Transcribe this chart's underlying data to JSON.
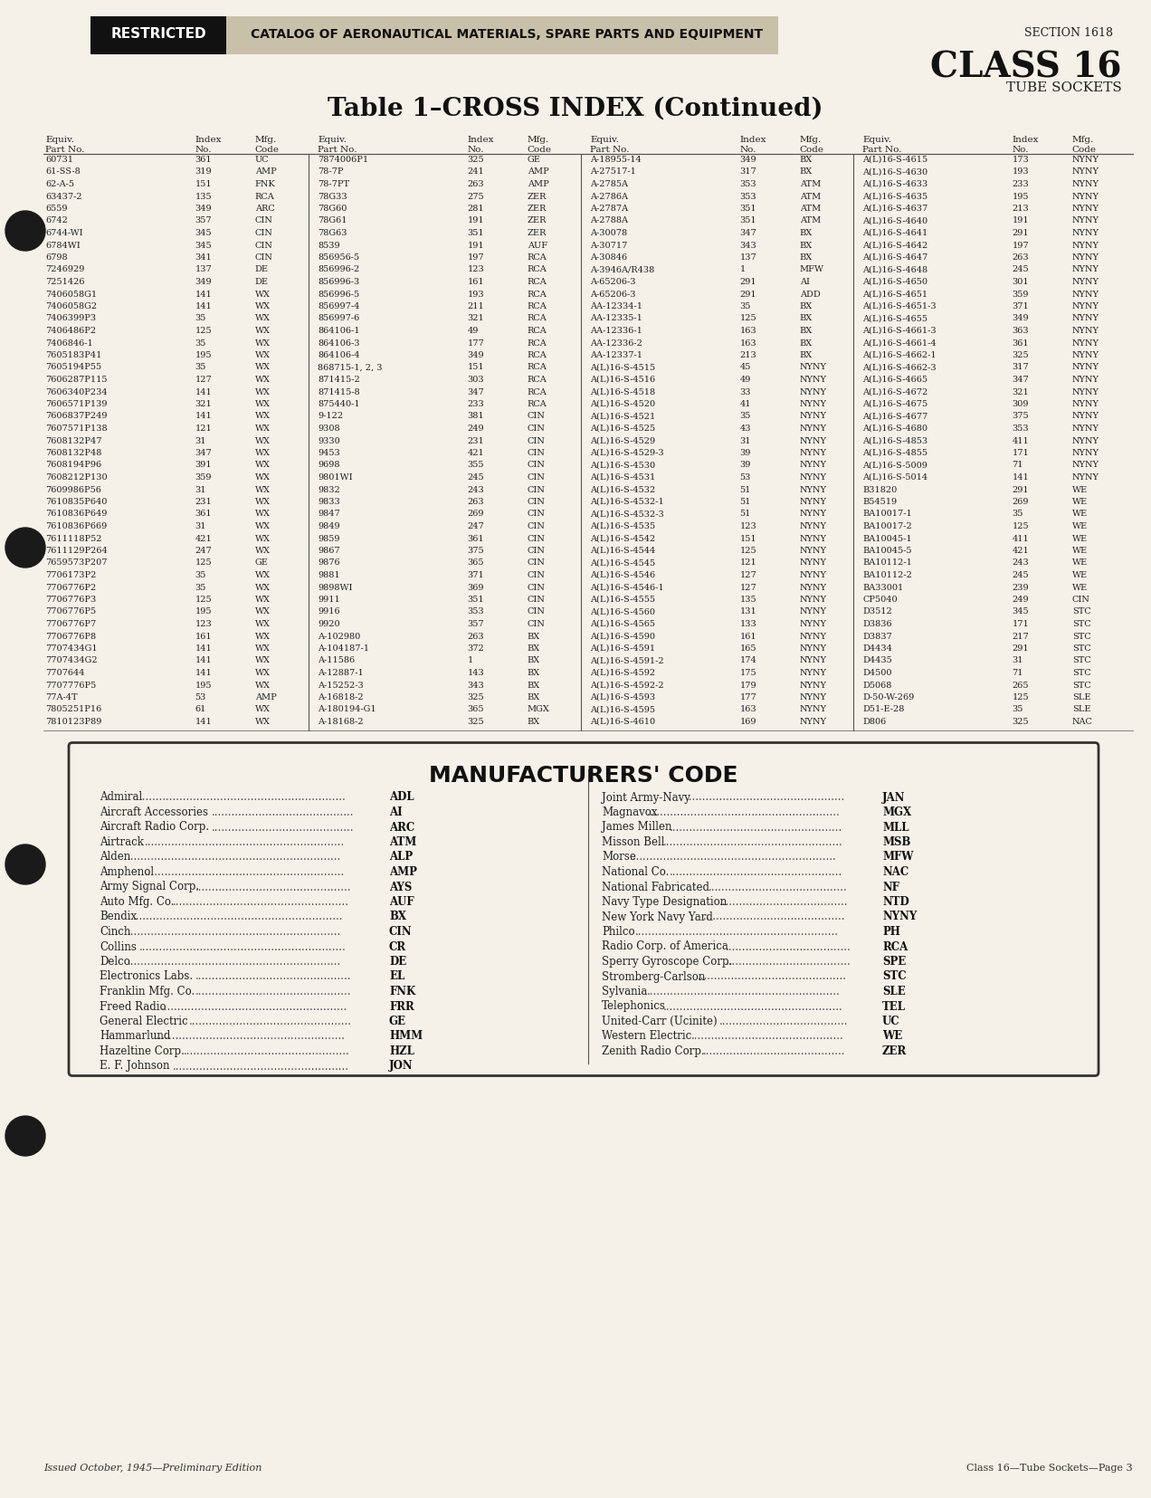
{
  "bg_color": "#f5f0e8",
  "page_title_section": "SECTION 1618",
  "page_title_class": "CLASS 16",
  "page_title_sub": "TUBE SOCKETS",
  "header_restricted": "RESTRICTED",
  "header_catalog": "CATALOG OF AERONAUTICAL MATERIALS, SPARE PARTS AND EQUIPMENT",
  "table_title": "Table 1–CROSS INDEX (Continued)",
  "col_headers": [
    "Equiv.\nPart No.",
    "Index\nNo.",
    "Mfg.\nCode",
    "Equiv.\nPart No.",
    "Index\nNo.",
    "Mfg.\nCode",
    "Equiv.\nPart No.",
    "Index\nNo.",
    "Mfg.\nCode",
    "Equiv.\nPart No.",
    "Index\nNo.",
    "Mfg.\nCode"
  ],
  "table_data": [
    [
      "60731",
      "361",
      "UC",
      "7874006P1",
      "325",
      "GE",
      "A-18955-14",
      "349",
      "BX",
      "A(L)16-S-4615",
      "173",
      "NYNY"
    ],
    [
      "61-SS-8",
      "319",
      "AMP",
      "78-7P",
      "241",
      "AMP",
      "A-27517-1",
      "317",
      "BX",
      "A(L)16-S-4630",
      "193",
      "NYNY"
    ],
    [
      "62-A-5",
      "151",
      "FNK",
      "78-7PT",
      "263",
      "AMP",
      "A-2785A",
      "353",
      "ATM",
      "A(L)16-S-4633",
      "233",
      "NYNY"
    ],
    [
      "63437-2",
      "135",
      "RCA",
      "78G33",
      "275",
      "ZER",
      "A-2786A",
      "353",
      "ATM",
      "A(L)16-S-4635",
      "195",
      "NYNY"
    ],
    [
      "6559",
      "349",
      "ARC",
      "78G60",
      "281",
      "ZER",
      "A-2787A",
      "351",
      "ATM",
      "A(L)16-S-4637",
      "213",
      "NYNY"
    ],
    [
      "6742",
      "357",
      "CIN",
      "78G61",
      "191",
      "ZER",
      "A-2788A",
      "351",
      "ATM",
      "A(L)16-S-4640",
      "191",
      "NYNY"
    ],
    [
      "6744-WI",
      "345",
      "CIN",
      "78G63",
      "351",
      "ZER",
      "A-30078",
      "347",
      "BX",
      "A(L)16-S-4641",
      "291",
      "NYNY"
    ],
    [
      "6784WI",
      "345",
      "CIN",
      "8539",
      "191",
      "AUF",
      "A-30717",
      "343",
      "BX",
      "A(L)16-S-4642",
      "197",
      "NYNY"
    ],
    [
      "6798",
      "341",
      "CIN",
      "856956-5",
      "197",
      "RCA",
      "A-30846",
      "137",
      "BX",
      "A(L)16-S-4647",
      "263",
      "NYNY"
    ],
    [
      "7246929",
      "137",
      "DE",
      "856996-2",
      "123",
      "RCA",
      "A-3946A/R438",
      "1",
      "MFW",
      "A(L)16-S-4648",
      "245",
      "NYNY"
    ],
    [
      "7251426",
      "349",
      "DE",
      "856996-3",
      "161",
      "RCA",
      "A-65206-3",
      "291",
      "AI",
      "A(L)16-S-4650",
      "301",
      "NYNY"
    ],
    [
      "7406058G1",
      "141",
      "WX",
      "856996-5",
      "193",
      "RCA",
      "A-65206-3",
      "291",
      "ADD",
      "A(L)16-S-4651",
      "359",
      "NYNY"
    ],
    [
      "7406058G2",
      "141",
      "WX",
      "856997-4",
      "211",
      "RCA",
      "AA-12334-1",
      "35",
      "BX",
      "A(L)16-S-4651-3",
      "371",
      "NYNY"
    ],
    [
      "7406399P3",
      "35",
      "WX",
      "856997-6",
      "321",
      "RCA",
      "AA-12335-1",
      "125",
      "BX",
      "A(L)16-S-4655",
      "349",
      "NYNY"
    ],
    [
      "7406486P2",
      "125",
      "WX",
      "864106-1",
      "49",
      "RCA",
      "AA-12336-1",
      "163",
      "BX",
      "A(L)16-S-4661-3",
      "363",
      "NYNY"
    ],
    [
      "7406846-1",
      "35",
      "WX",
      "864106-3",
      "177",
      "RCA",
      "AA-12336-2",
      "163",
      "BX",
      "A(L)16-S-4661-4",
      "361",
      "NYNY"
    ],
    [
      "7605183P41",
      "195",
      "WX",
      "864106-4",
      "349",
      "RCA",
      "AA-12337-1",
      "213",
      "BX",
      "A(L)16-S-4662-1",
      "325",
      "NYNY"
    ],
    [
      "7605194P55",
      "35",
      "WX",
      "868715-1, 2, 3",
      "151",
      "RCA",
      "A(L)16-S-4515",
      "45",
      "NYNY",
      "A(L)16-S-4662-3",
      "317",
      "NYNY"
    ],
    [
      "7606287P115",
      "127",
      "WX",
      "871415-2",
      "303",
      "RCA",
      "A(L)16-S-4516",
      "49",
      "NYNY",
      "A(L)16-S-4665",
      "347",
      "NYNY"
    ],
    [
      "7606340P234",
      "141",
      "WX",
      "871415-8",
      "347",
      "RCA",
      "A(L)16-S-4518",
      "33",
      "NYNY",
      "A(L)16-S-4672",
      "321",
      "NYNY"
    ],
    [
      "7606571P139",
      "321",
      "WX",
      "875440-1",
      "233",
      "RCA",
      "A(L)16-S-4520",
      "41",
      "NYNY",
      "A(L)16-S-4675",
      "309",
      "NYNY"
    ],
    [
      "7606837P249",
      "141",
      "WX",
      "9-122",
      "381",
      "CIN",
      "A(L)16-S-4521",
      "35",
      "NYNY",
      "A(L)16-S-4677",
      "375",
      "NYNY"
    ],
    [
      "7607571P138",
      "121",
      "WX",
      "9308",
      "249",
      "CIN",
      "A(L)16-S-4525",
      "43",
      "NYNY",
      "A(L)16-S-4680",
      "353",
      "NYNY"
    ],
    [
      "7608132P47",
      "31",
      "WX",
      "9330",
      "231",
      "CIN",
      "A(L)16-S-4529",
      "31",
      "NYNY",
      "A(L)16-S-4853",
      "411",
      "NYNY"
    ],
    [
      "7608132P48",
      "347",
      "WX",
      "9453",
      "421",
      "CIN",
      "A(L)16-S-4529-3",
      "39",
      "NYNY",
      "A(L)16-S-4855",
      "171",
      "NYNY"
    ],
    [
      "7608194P96",
      "391",
      "WX",
      "9698",
      "355",
      "CIN",
      "A(L)16-S-4530",
      "39",
      "NYNY",
      "A(L)16-S-5009",
      "71",
      "NYNY"
    ],
    [
      "7608212P130",
      "359",
      "WX",
      "9801WI",
      "245",
      "CIN",
      "A(L)16-S-4531",
      "53",
      "NYNY",
      "A(L)16-S-5014",
      "141",
      "NYNY"
    ],
    [
      "7609986P56",
      "31",
      "WX",
      "9832",
      "243",
      "CIN",
      "A(L)16-S-4532",
      "51",
      "NYNY",
      "B31820",
      "291",
      "WE"
    ],
    [
      "7610835P640",
      "231",
      "WX",
      "9833",
      "263",
      "CIN",
      "A(L)16-S-4532-1",
      "51",
      "NYNY",
      "B54519",
      "269",
      "WE"
    ],
    [
      "7610836P649",
      "361",
      "WX",
      "9847",
      "269",
      "CIN",
      "A(L)16-S-4532-3",
      "51",
      "NYNY",
      "BA10017-1",
      "35",
      "WE"
    ],
    [
      "7610836P669",
      "31",
      "WX",
      "9849",
      "247",
      "CIN",
      "A(L)16-S-4535",
      "123",
      "NYNY",
      "BA10017-2",
      "125",
      "WE"
    ],
    [
      "7611118P52",
      "421",
      "WX",
      "9859",
      "361",
      "CIN",
      "A(L)16-S-4542",
      "151",
      "NYNY",
      "BA10045-1",
      "411",
      "WE"
    ],
    [
      "7611129P264",
      "247",
      "WX",
      "9867",
      "375",
      "CIN",
      "A(L)16-S-4544",
      "125",
      "NYNY",
      "BA10045-5",
      "421",
      "WE"
    ],
    [
      "7659573P207",
      "125",
      "GE",
      "9876",
      "365",
      "CIN",
      "A(L)16-S-4545",
      "121",
      "NYNY",
      "BA10112-1",
      "243",
      "WE"
    ],
    [
      "7706173P2",
      "35",
      "WX",
      "9881",
      "371",
      "CIN",
      "A(L)16-S-4546",
      "127",
      "NYNY",
      "BA10112-2",
      "245",
      "WE"
    ],
    [
      "7706776P2",
      "35",
      "WX",
      "9898WI",
      "369",
      "CIN",
      "A(L)16-S-4546-1",
      "127",
      "NYNY",
      "BA33001",
      "239",
      "WE"
    ],
    [
      "7706776P3",
      "125",
      "WX",
      "9911",
      "351",
      "CIN",
      "A(L)16-S-4555",
      "135",
      "NYNY",
      "CP5040",
      "249",
      "CIN"
    ],
    [
      "7706776P5",
      "195",
      "WX",
      "9916",
      "353",
      "CIN",
      "A(L)16-S-4560",
      "131",
      "NYNY",
      "D3512",
      "345",
      "STC"
    ],
    [
      "7706776P7",
      "123",
      "WX",
      "9920",
      "357",
      "CIN",
      "A(L)16-S-4565",
      "133",
      "NYNY",
      "D3836",
      "171",
      "STC"
    ],
    [
      "7706776P8",
      "161",
      "WX",
      "A-102980",
      "263",
      "BX",
      "A(L)16-S-4590",
      "161",
      "NYNY",
      "D3837",
      "217",
      "STC"
    ],
    [
      "7707434G1",
      "141",
      "WX",
      "A-104187-1",
      "372",
      "BX",
      "A(L)16-S-4591",
      "165",
      "NYNY",
      "D4434",
      "291",
      "STC"
    ],
    [
      "7707434G2",
      "141",
      "WX",
      "A-11586",
      "1",
      "BX",
      "A(L)16-S-4591-2",
      "174",
      "NYNY",
      "D4435",
      "31",
      "STC"
    ],
    [
      "7707644",
      "141",
      "WX",
      "A-12887-1",
      "143",
      "BX",
      "A(L)16-S-4592",
      "175",
      "NYNY",
      "D4500",
      "71",
      "STC"
    ],
    [
      "7707776P5",
      "195",
      "WX",
      "A-15252-3",
      "343",
      "BX",
      "A(L)16-S-4592-2",
      "179",
      "NYNY",
      "D5068",
      "265",
      "STC"
    ],
    [
      "77A-4T",
      "53",
      "AMP",
      "A-16818-2",
      "325",
      "BX",
      "A(L)16-S-4593",
      "177",
      "NYNY",
      "D-50-W-269",
      "125",
      "SLE"
    ],
    [
      "7805251P16",
      "61",
      "WX",
      "A-180194-G1",
      "365",
      "MGX",
      "A(L)16-S-4595",
      "163",
      "NYNY",
      "D51-E-28",
      "35",
      "SLE"
    ],
    [
      "7810123P89",
      "141",
      "WX",
      "A-18168-2",
      "325",
      "BX",
      "A(L)16-S-4610",
      "169",
      "NYNY",
      "D806",
      "325",
      "NAC"
    ]
  ],
  "mfg_title": "MANUFACTURERS' CODE",
  "mfg_left": [
    [
      "Admiral",
      "ADL"
    ],
    [
      "Aircraft Accessories",
      "AI"
    ],
    [
      "Aircraft Radio Corp.",
      "ARC"
    ],
    [
      "Airtrack",
      "ATM"
    ],
    [
      "Alden",
      "ALP"
    ],
    [
      "Amphenol",
      "AMP"
    ],
    [
      "Army Signal Corp.",
      "AYS"
    ],
    [
      "Auto Mfg. Co.",
      "AUF"
    ],
    [
      "Bendix",
      "BX"
    ],
    [
      "Cinch",
      "CIN"
    ],
    [
      "Collins",
      "CR"
    ],
    [
      "Delco",
      "DE"
    ],
    [
      "Electronics Labs.",
      "EL"
    ],
    [
      "Franklin Mfg. Co.",
      "FNK"
    ],
    [
      "Freed Radio",
      "FRR"
    ],
    [
      "General Electric",
      "GE"
    ],
    [
      "Hammarlund",
      "HMM"
    ],
    [
      "Hazeltine Corp.",
      "HZL"
    ],
    [
      "E. F. Johnson",
      "JON"
    ]
  ],
  "mfg_right": [
    [
      "Joint Army-Navy",
      "JAN"
    ],
    [
      "Magnavox",
      "MGX"
    ],
    [
      "James Millen",
      "MLL"
    ],
    [
      "Misson Bell",
      "MSB"
    ],
    [
      "Morse",
      "MFW"
    ],
    [
      "National Co.",
      "NAC"
    ],
    [
      "National Fabricated",
      "NF"
    ],
    [
      "Navy Type Designation",
      "NTD"
    ],
    [
      "New York Navy Yard",
      "NYNY"
    ],
    [
      "Philco",
      "PH"
    ],
    [
      "Radio Corp. of America",
      "RCA"
    ],
    [
      "Sperry Gyroscope Corp.",
      "SPE"
    ],
    [
      "Stromberg-Carlson",
      "STC"
    ],
    [
      "Sylvania",
      "SLE"
    ],
    [
      "Telephonics",
      "TEL"
    ],
    [
      "United-Carr (Ucinite)",
      "UC"
    ],
    [
      "Western Electric",
      "WE"
    ],
    [
      "Zenith Radio Corp.",
      "ZER"
    ]
  ],
  "footer_left": "Issued October, 1945—Preliminary Edition",
  "footer_right": "Class 16—Tube Sockets—Page 3"
}
